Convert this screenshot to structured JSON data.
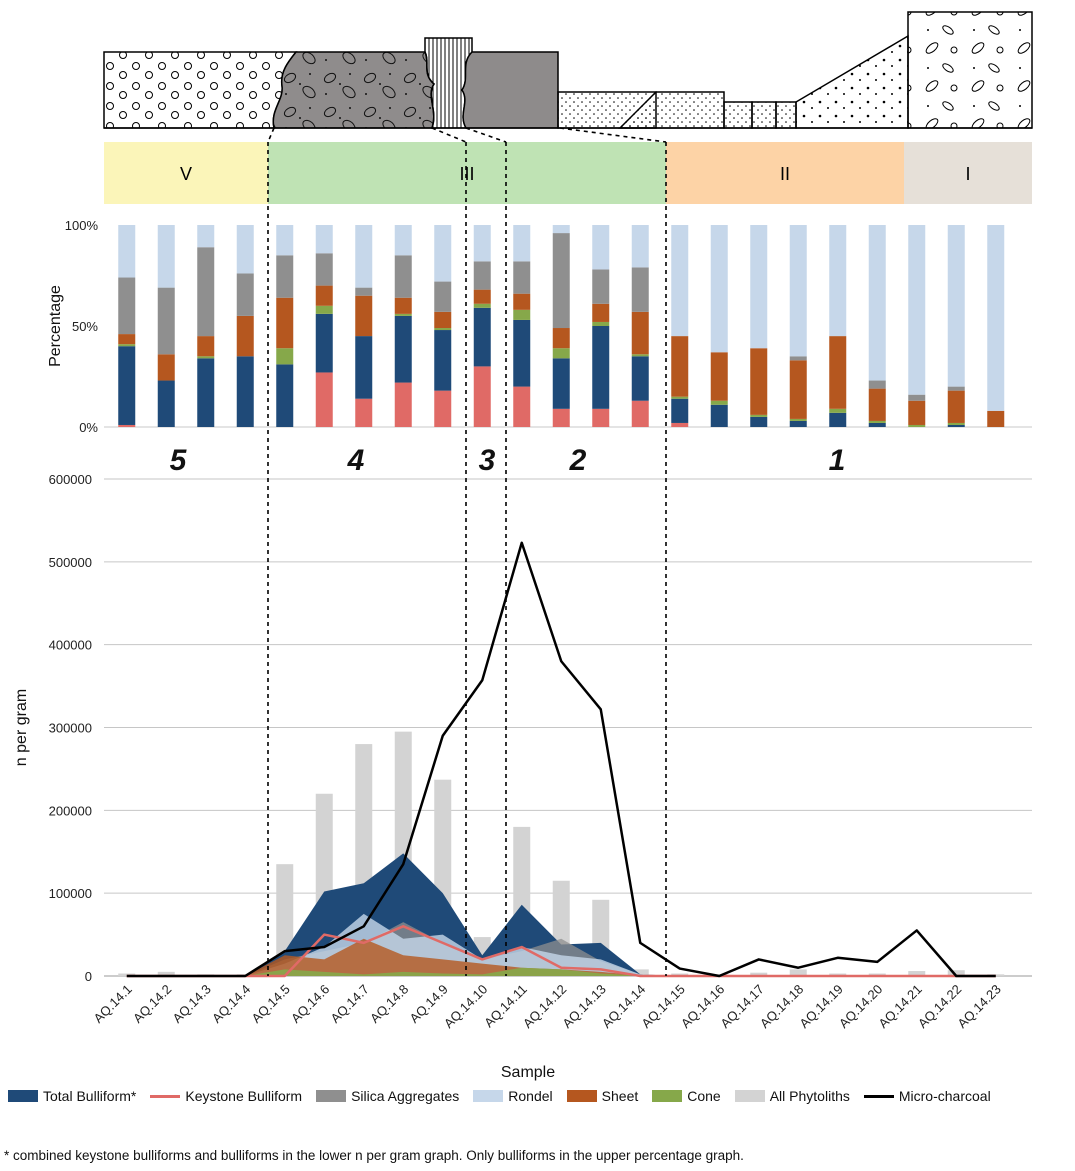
{
  "colors": {
    "total_bulliform": "#1f4a78",
    "keystone_bulliform": "#e06a66",
    "silica_aggregates": "#8f8f8f",
    "rondel": "#c6d7ea",
    "sheet": "#b5571f",
    "cone": "#86a84a",
    "all_phytoliths": "#d3d3d3",
    "micro_charcoal": "#000000",
    "zone_v": "#fbf5b9",
    "zone_iii": "#bfe3b4",
    "zone_ii": "#fdd3a6",
    "zone_i": "#e6e0d8"
  },
  "zones": [
    "V",
    "III",
    "II",
    "I"
  ],
  "units": [
    "5",
    "4",
    "3",
    "2",
    "1"
  ],
  "chart_data": [
    {
      "type": "bar",
      "stacked": true,
      "ylabel": "Percentage",
      "ytick_labels": [
        "0%",
        "50%",
        "100%"
      ],
      "ylim": [
        0,
        100
      ],
      "categories": [
        "AQ.14.1",
        "AQ.14.2",
        "AQ.14.3",
        "AQ.14.4",
        "AQ.14.5",
        "AQ.14.6",
        "AQ.14.7",
        "AQ.14.8",
        "AQ.14.9",
        "AQ.14.10",
        "AQ.14.11",
        "AQ.14.12",
        "AQ.14.13",
        "AQ.14.14",
        "AQ.14.15",
        "AQ.14.16",
        "AQ.14.17",
        "AQ.14.18",
        "AQ.14.19",
        "AQ.14.20",
        "AQ.14.21",
        "AQ.14.22",
        "AQ.14.23"
      ],
      "series": [
        {
          "name": "Keystone Bulliform",
          "color_key": "keystone_bulliform",
          "values": [
            1,
            0,
            0,
            0,
            0,
            27,
            14,
            22,
            18,
            30,
            20,
            9,
            9,
            13,
            2,
            0,
            0,
            0,
            0,
            0,
            0,
            0,
            0
          ]
        },
        {
          "name": "Total Bulliform*",
          "color_key": "total_bulliform",
          "values": [
            39,
            23,
            34,
            35,
            31,
            29,
            31,
            33,
            30,
            29,
            33,
            25,
            41,
            22,
            12,
            11,
            5,
            3,
            7,
            2,
            0,
            1,
            0
          ]
        },
        {
          "name": "Cone",
          "color_key": "cone",
          "values": [
            1,
            0,
            1,
            0,
            8,
            4,
            0,
            1,
            1,
            2,
            5,
            5,
            2,
            1,
            1,
            2,
            1,
            1,
            2,
            1,
            1,
            1,
            0
          ]
        },
        {
          "name": "Sheet",
          "color_key": "sheet",
          "values": [
            5,
            13,
            10,
            20,
            25,
            10,
            20,
            8,
            8,
            7,
            8,
            10,
            9,
            21,
            30,
            24,
            33,
            29,
            36,
            16,
            12,
            16,
            8
          ]
        },
        {
          "name": "Silica Aggregates",
          "color_key": "silica_aggregates",
          "values": [
            28,
            33,
            44,
            21,
            21,
            16,
            4,
            21,
            15,
            14,
            16,
            47,
            17,
            22,
            0,
            0,
            0,
            2,
            0,
            4,
            3,
            2,
            0
          ]
        },
        {
          "name": "Rondel",
          "color_key": "rondel",
          "values": [
            26,
            31,
            11,
            24,
            15,
            14,
            31,
            15,
            28,
            18,
            18,
            4,
            22,
            21,
            55,
            63,
            61,
            65,
            55,
            77,
            84,
            80,
            92
          ]
        }
      ]
    },
    {
      "type": "area",
      "xlabel": "Sample",
      "ylabel": "n per gram",
      "ylim": [
        0,
        600000
      ],
      "yticks": [
        0,
        100000,
        200000,
        300000,
        400000,
        500000,
        600000
      ],
      "ytick_labels": [
        "0",
        "100000",
        "200000",
        "300000",
        "400000",
        "500000",
        "600000"
      ],
      "categories": [
        "AQ.14.1",
        "AQ.14.2",
        "AQ.14.3",
        "AQ.14.4",
        "AQ.14.5",
        "AQ.14.6",
        "AQ.14.7",
        "AQ.14.8",
        "AQ.14.9",
        "AQ.14.10",
        "AQ.14.11",
        "AQ.14.12",
        "AQ.14.13",
        "AQ.14.14",
        "AQ.14.15",
        "AQ.14.16",
        "AQ.14.17",
        "AQ.14.18",
        "AQ.14.19",
        "AQ.14.20",
        "AQ.14.21",
        "AQ.14.22",
        "AQ.14.23"
      ],
      "bars": {
        "name": "All Phytoliths",
        "color_key": "all_phytoliths",
        "values": [
          3000,
          5000,
          2000,
          2000,
          135000,
          220000,
          280000,
          295000,
          237000,
          47000,
          180000,
          115000,
          92000,
          8000,
          3000,
          2000,
          4000,
          8000,
          3000,
          3000,
          6000,
          7000,
          2000
        ]
      },
      "areas": [
        {
          "name": "Total Bulliform*",
          "color_key": "total_bulliform",
          "values": [
            0,
            0,
            0,
            0,
            30000,
            102000,
            112000,
            148000,
            100000,
            25000,
            86000,
            38000,
            40000,
            2000,
            0,
            0,
            0,
            0,
            0,
            0,
            0,
            0,
            0
          ]
        },
        {
          "name": "Silica Aggregates",
          "color_key": "silica_aggregates",
          "values": [
            0,
            0,
            0,
            0,
            20000,
            30000,
            40000,
            65000,
            40000,
            20000,
            30000,
            45000,
            18000,
            2000,
            0,
            0,
            0,
            0,
            0,
            0,
            0,
            0,
            0
          ]
        },
        {
          "name": "Rondel",
          "color_key": "rondel",
          "values": [
            0,
            0,
            0,
            0,
            15000,
            35000,
            75000,
            45000,
            50000,
            20000,
            35000,
            25000,
            20000,
            2000,
            0,
            0,
            0,
            0,
            0,
            0,
            0,
            0,
            0
          ]
        },
        {
          "name": "Sheet",
          "color_key": "sheet",
          "values": [
            0,
            0,
            0,
            0,
            25000,
            20000,
            45000,
            25000,
            20000,
            15000,
            10000,
            8000,
            5000,
            1000,
            0,
            0,
            0,
            0,
            0,
            0,
            0,
            0,
            0
          ]
        },
        {
          "name": "Cone",
          "color_key": "cone",
          "values": [
            0,
            0,
            0,
            0,
            8000,
            5000,
            2000,
            5000,
            3000,
            2000,
            10000,
            8000,
            3000,
            500,
            0,
            0,
            0,
            0,
            0,
            0,
            0,
            0,
            0
          ]
        }
      ],
      "lines": [
        {
          "name": "Keystone Bulliform",
          "color_key": "keystone_bulliform",
          "values": [
            0,
            0,
            0,
            0,
            0,
            50000,
            40000,
            60000,
            40000,
            20000,
            35000,
            10000,
            8000,
            0,
            0,
            0,
            0,
            0,
            0,
            0,
            0,
            0,
            0
          ]
        },
        {
          "name": "Micro-charcoal",
          "color_key": "micro_charcoal",
          "values": [
            0,
            0,
            0,
            0,
            30000,
            35000,
            60000,
            135000,
            290000,
            357000,
            523000,
            380000,
            322000,
            40000,
            9000,
            0,
            20000,
            10000,
            22000,
            17000,
            55000,
            0,
            0
          ]
        }
      ]
    }
  ],
  "legend": [
    {
      "label": "Total Bulliform*",
      "kind": "box",
      "color_key": "total_bulliform"
    },
    {
      "label": "Keystone Bulliform",
      "kind": "line",
      "color_key": "keystone_bulliform"
    },
    {
      "label": "Silica Aggregates",
      "kind": "box",
      "color_key": "silica_aggregates"
    },
    {
      "label": "Rondel",
      "kind": "box",
      "color_key": "rondel"
    },
    {
      "label": "Sheet",
      "kind": "box",
      "color_key": "sheet"
    },
    {
      "label": "Cone",
      "kind": "box",
      "color_key": "cone"
    },
    {
      "label": "All Phytoliths",
      "kind": "box",
      "color_key": "all_phytoliths"
    },
    {
      "label": "Micro-charcoal",
      "kind": "line",
      "color_key": "micro_charcoal"
    }
  ],
  "footnote": "* combined keystone bulliforms and bulliforms in the lower n per gram graph. Only bulliforms in the upper percentage graph."
}
